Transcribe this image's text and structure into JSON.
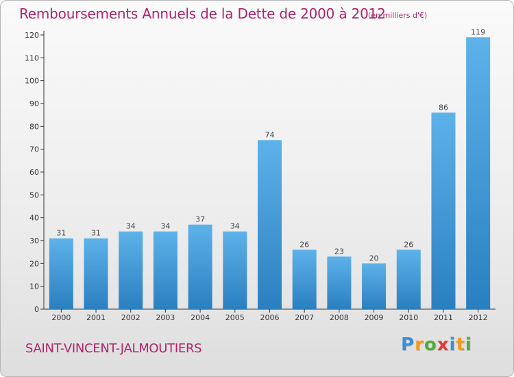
{
  "header": {
    "title": "Remboursements Annuels de la Dette de 2000 à 2012",
    "subtitle": "(en milliers d'€)"
  },
  "footer": {
    "commune": "SAINT-VINCENT-JALMOUTIERS",
    "logo_letters": [
      "P",
      "r",
      "o",
      "x",
      "i",
      "t",
      "i"
    ]
  },
  "colors": {
    "title": "#b0236a",
    "bar_top": "#5eb2ea",
    "bar_bottom": "#2a7fc0",
    "logo": [
      "#3a8fd6",
      "#f39a1e",
      "#4cae3b",
      "#e23a3a",
      "#3a8fd6",
      "#f39a1e",
      "#4cae3b"
    ]
  },
  "chart_data": {
    "type": "bar",
    "categories": [
      "2000",
      "2001",
      "2002",
      "2003",
      "2004",
      "2005",
      "2006",
      "2007",
      "2008",
      "2009",
      "2010",
      "2011",
      "2012"
    ],
    "values": [
      31,
      31,
      34,
      34,
      37,
      34,
      74,
      26,
      23,
      20,
      26,
      86,
      119
    ],
    "title": "Remboursements Annuels de la Dette de 2000 à 2012",
    "subtitle": "(en milliers d'€)",
    "xlabel": "",
    "ylabel": "",
    "ylim": [
      0,
      120
    ],
    "yticks": [
      0,
      10,
      20,
      30,
      40,
      50,
      60,
      70,
      80,
      90,
      100,
      110,
      120
    ],
    "grid": false,
    "data_labels": true
  }
}
